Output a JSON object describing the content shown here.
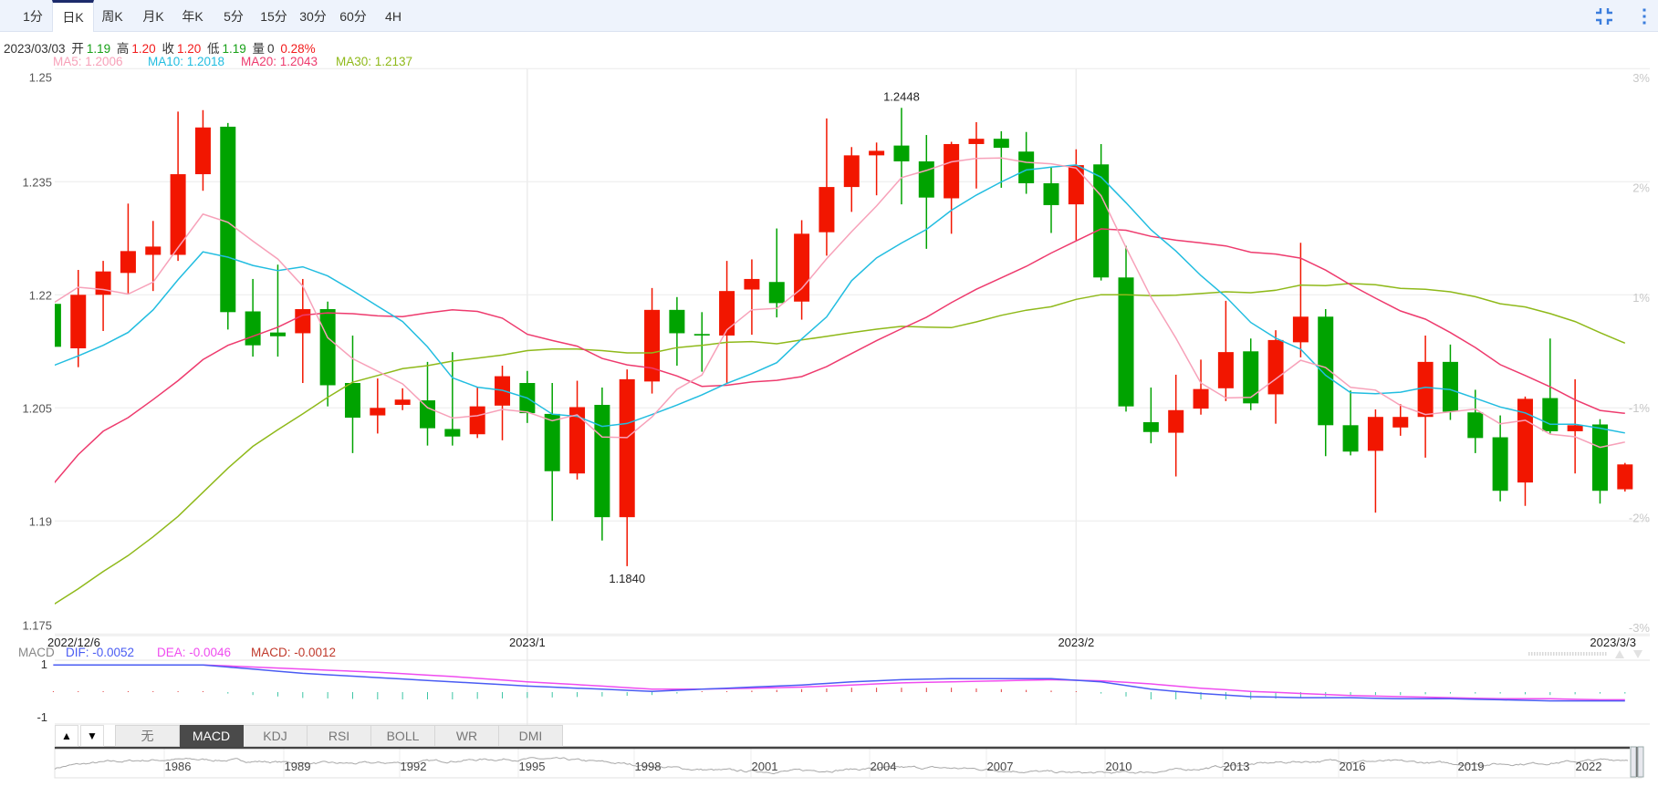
{
  "tabs": [
    {
      "label": "1分",
      "active": false
    },
    {
      "label": "日K",
      "active": true
    },
    {
      "label": "周K",
      "active": false
    },
    {
      "label": "月K",
      "active": false
    },
    {
      "label": "年K",
      "active": false
    },
    {
      "label": "5分",
      "active": false
    },
    {
      "label": "15分",
      "active": false
    },
    {
      "label": "30分",
      "active": false
    },
    {
      "label": "60分",
      "active": false
    },
    {
      "label": "4H",
      "active": false
    }
  ],
  "toolbar_icons": [
    "compress-icon",
    "more-vertical-icon"
  ],
  "info": {
    "date": "2023/03/03",
    "open_label": "开",
    "open": "1.19",
    "high_label": "高",
    "high": "1.20",
    "close_label": "收",
    "close": "1.20",
    "low_label": "低",
    "low": "1.19",
    "volume_label": "量",
    "volume": "0",
    "change": "0.28%"
  },
  "ma_legend": [
    {
      "text": "MA5: 1.2006",
      "color": "#f7a1b9"
    },
    {
      "text": "MA10: 1.2018",
      "color": "#22bde0"
    },
    {
      "text": "MA20: 1.2043",
      "color": "#ee3b6e"
    },
    {
      "text": "MA30: 1.2137",
      "color": "#8fb91a"
    }
  ],
  "macd_legend": {
    "title": "MACD",
    "dif": "DIF: -0.0052",
    "dea": "DEA: -0.0046",
    "macd": "MACD: -0.0012",
    "axis_top": "1",
    "axis_bottom": "-1"
  },
  "indicator_tabs": [
    {
      "label": "无",
      "active": false
    },
    {
      "label": "MACD",
      "active": true
    },
    {
      "label": "KDJ",
      "active": false
    },
    {
      "label": "RSI",
      "active": false
    },
    {
      "label": "BOLL",
      "active": false
    },
    {
      "label": "WR",
      "active": false
    },
    {
      "label": "DMI",
      "active": false
    }
  ],
  "indicator_arrows": [
    "▲",
    "▼"
  ],
  "navigator": {
    "year_labels": [
      "1986",
      "1989",
      "1992",
      "1995",
      "1998",
      "2001",
      "2004",
      "2007",
      "2010",
      "2013",
      "2016",
      "2019",
      "2022"
    ]
  },
  "colors": {
    "up": "#f21600",
    "down": "#00a300",
    "ma5": "#f7a1b9",
    "ma10": "#22bde0",
    "ma20": "#ee3b6e",
    "ma30": "#8fb91a",
    "dif": "#4a5cf3",
    "dea": "#ef4cef",
    "macd_text": "#c0392b",
    "hist_up": "#e03a3a",
    "hist_down": "#3cc4a4"
  },
  "chart_data": {
    "type": "candlestick",
    "ylim": [
      1.175,
      1.25
    ],
    "y_ticks": [
      "1.25",
      "1.235",
      "1.22",
      "1.205",
      "1.19",
      "1.175"
    ],
    "y_tick_values": [
      1.25,
      1.235,
      1.22,
      1.205,
      1.19,
      1.175
    ],
    "right_ticks": [
      "3%",
      "2%",
      "1%",
      "-1%",
      "-2%",
      "-3%"
    ],
    "x_labels": [
      {
        "index": 0,
        "text": "2022/12/6"
      },
      {
        "index": 19,
        "text": "2023/1"
      },
      {
        "index": 41,
        "text": "2023/2"
      },
      {
        "index": 63,
        "text": "2023/3/3"
      }
    ],
    "max_label": {
      "index": 34,
      "text": "1.2448",
      "value": 1.2448
    },
    "min_label": {
      "index": 23,
      "text": "1.1840",
      "value": 1.184
    },
    "ohlc": [
      [
        1.2188,
        1.219,
        1.2131,
        1.2131
      ],
      [
        1.2129,
        1.2233,
        1.2104,
        1.22
      ],
      [
        1.22,
        1.2245,
        1.2152,
        1.2231
      ],
      [
        1.2229,
        1.2321,
        1.2202,
        1.2258
      ],
      [
        1.2253,
        1.2298,
        1.2205,
        1.2264
      ],
      [
        1.2253,
        1.2443,
        1.2245,
        1.236
      ],
      [
        1.236,
        1.2445,
        1.2338,
        1.2422
      ],
      [
        1.2423,
        1.2428,
        1.2154,
        1.2177
      ],
      [
        1.2178,
        1.2221,
        1.2118,
        1.2133
      ],
      [
        1.215,
        1.224,
        1.2118,
        1.2145
      ],
      [
        1.2149,
        1.2221,
        1.2083,
        1.2181
      ],
      [
        1.2181,
        1.2191,
        1.2052,
        1.208
      ],
      [
        1.2083,
        1.2146,
        1.199,
        1.2037
      ],
      [
        1.204,
        1.2089,
        1.2016,
        1.205
      ],
      [
        1.2054,
        1.2076,
        1.2047,
        1.2061
      ],
      [
        1.206,
        1.2111,
        1.2,
        1.2023
      ],
      [
        1.2022,
        1.2124,
        1.2,
        1.2012
      ],
      [
        1.2015,
        1.2077,
        1.201,
        1.2052
      ],
      [
        1.2053,
        1.2106,
        1.2007,
        1.2092
      ],
      [
        1.2083,
        1.2099,
        1.203,
        1.2043
      ],
      [
        1.2042,
        1.2083,
        1.19,
        1.1966
      ],
      [
        1.1963,
        1.2086,
        1.1955,
        1.2051
      ],
      [
        1.2054,
        1.2077,
        1.1874,
        1.1905
      ],
      [
        1.1905,
        1.2101,
        1.184,
        1.2088
      ],
      [
        1.2085,
        1.2209,
        1.2069,
        1.218
      ],
      [
        1.218,
        1.2197,
        1.2106,
        1.2149
      ],
      [
        1.2148,
        1.2177,
        1.2098,
        1.2146
      ],
      [
        1.2146,
        1.2245,
        1.2083,
        1.2205
      ],
      [
        1.2207,
        1.2247,
        1.2147,
        1.2221
      ],
      [
        1.2217,
        1.2288,
        1.217,
        1.2189
      ],
      [
        1.2191,
        1.2299,
        1.2167,
        1.2281
      ],
      [
        1.2283,
        1.2434,
        1.2252,
        1.2343
      ],
      [
        1.2343,
        1.2396,
        1.231,
        1.2385
      ],
      [
        1.2385,
        1.2402,
        1.2332,
        1.2391
      ],
      [
        1.2398,
        1.2448,
        1.232,
        1.2377
      ],
      [
        1.2377,
        1.2412,
        1.2261,
        1.2329
      ],
      [
        1.2328,
        1.2403,
        1.2281,
        1.24
      ],
      [
        1.24,
        1.2429,
        1.2341,
        1.2407
      ],
      [
        1.2407,
        1.2417,
        1.2342,
        1.2395
      ],
      [
        1.239,
        1.2416,
        1.2334,
        1.2348
      ],
      [
        1.2348,
        1.2369,
        1.2282,
        1.2319
      ],
      [
        1.232,
        1.2393,
        1.2272,
        1.2372
      ],
      [
        1.2373,
        1.24,
        1.2219,
        1.2223
      ],
      [
        1.2223,
        1.2265,
        1.2045,
        1.2052
      ],
      [
        1.2031,
        1.2077,
        1.2003,
        1.2018
      ],
      [
        1.2017,
        1.2094,
        1.1959,
        1.2047
      ],
      [
        1.2049,
        1.2114,
        1.2041,
        1.2075
      ],
      [
        1.2076,
        1.2192,
        1.2059,
        1.2124
      ],
      [
        1.2125,
        1.2142,
        1.2047,
        1.2056
      ],
      [
        1.2068,
        1.2153,
        1.2029,
        1.214
      ],
      [
        1.2137,
        1.2269,
        1.2117,
        1.2171
      ],
      [
        1.2171,
        1.2181,
        1.1986,
        1.2027
      ],
      [
        1.2027,
        1.2073,
        1.1987,
        1.1992
      ],
      [
        1.1993,
        1.2048,
        1.1911,
        1.2038
      ],
      [
        1.2024,
        1.2055,
        1.2013,
        1.2038
      ],
      [
        1.2038,
        1.2146,
        1.1984,
        1.2111
      ],
      [
        1.2111,
        1.2134,
        1.2034,
        1.2045
      ],
      [
        1.2044,
        1.2074,
        1.199,
        1.201
      ],
      [
        1.2011,
        1.204,
        1.1926,
        1.194
      ],
      [
        1.1951,
        1.2065,
        1.192,
        1.2062
      ],
      [
        1.2063,
        1.2142,
        1.2016,
        1.2019
      ],
      [
        1.2019,
        1.2088,
        1.1963,
        1.2027
      ],
      [
        1.2028,
        1.2035,
        1.1923,
        1.194
      ],
      [
        1.1942,
        1.1977,
        1.1939,
        1.1975
      ]
    ],
    "ma": {
      "ma5": {
        "period": 5,
        "leading_values": [
          1.2189,
          1.221,
          1.2207,
          1.2201
        ]
      },
      "ma10": {
        "period": 10,
        "leading_values": [
          1.2106,
          1.2119,
          1.2133,
          1.215,
          1.218,
          1.222,
          1.2257,
          1.225,
          1.2239
        ]
      },
      "ma20": {
        "period": 20,
        "leading_values": [
          1.1949,
          1.1988,
          1.2019,
          1.2037,
          1.2061,
          1.2086,
          1.2114,
          1.2133,
          1.2145,
          1.2157,
          1.2173,
          1.2176,
          1.2175,
          1.2172,
          1.2171,
          1.2176,
          1.218,
          1.2178,
          1.2169
        ]
      },
      "ma30": {
        "period": 30,
        "leading_values": [
          1.1789,
          1.181,
          1.1833,
          1.1854,
          1.1879,
          1.1906,
          1.1938,
          1.197,
          1.1999,
          1.2021,
          1.2042,
          1.2064,
          1.2084,
          1.2093,
          1.2102,
          1.2106,
          1.2112,
          1.2116,
          1.212,
          1.2126,
          1.2128,
          1.2128,
          1.2126,
          1.2123,
          1.2123,
          1.213,
          1.2133,
          1.2137,
          1.2138
        ]
      }
    },
    "macd_panel": {
      "ylim": [
        -1,
        1
      ],
      "dif": [
        [
          0,
          0.96
        ],
        [
          6,
          0.96
        ],
        [
          8,
          0.8
        ],
        [
          10,
          0.64
        ],
        [
          13,
          0.48
        ],
        [
          16,
          0.32
        ],
        [
          19,
          0.16
        ],
        [
          22,
          0.04
        ],
        [
          24,
          -0.04
        ],
        [
          26,
          0.04
        ],
        [
          28,
          0.12
        ],
        [
          30,
          0.2
        ],
        [
          32,
          0.32
        ],
        [
          34,
          0.4
        ],
        [
          36,
          0.44
        ],
        [
          38,
          0.44
        ],
        [
          40,
          0.44
        ],
        [
          42,
          0.32
        ],
        [
          44,
          0.04
        ],
        [
          46,
          -0.12
        ],
        [
          48,
          -0.24
        ],
        [
          50,
          -0.28
        ],
        [
          52,
          -0.28
        ],
        [
          54,
          -0.32
        ],
        [
          56,
          -0.32
        ],
        [
          58,
          -0.36
        ],
        [
          60,
          -0.4
        ],
        [
          62,
          -0.4
        ],
        [
          63,
          -0.4
        ]
      ],
      "dea": [
        [
          0,
          0.96
        ],
        [
          6,
          0.96
        ],
        [
          8,
          0.88
        ],
        [
          10,
          0.8
        ],
        [
          13,
          0.68
        ],
        [
          16,
          0.52
        ],
        [
          19,
          0.32
        ],
        [
          22,
          0.16
        ],
        [
          24,
          0.04
        ],
        [
          26,
          0.04
        ],
        [
          28,
          0.08
        ],
        [
          30,
          0.12
        ],
        [
          32,
          0.2
        ],
        [
          34,
          0.28
        ],
        [
          36,
          0.32
        ],
        [
          38,
          0.36
        ],
        [
          40,
          0.4
        ],
        [
          42,
          0.36
        ],
        [
          44,
          0.24
        ],
        [
          46,
          0.08
        ],
        [
          48,
          -0.04
        ],
        [
          50,
          -0.12
        ],
        [
          52,
          -0.2
        ],
        [
          54,
          -0.24
        ],
        [
          56,
          -0.28
        ],
        [
          58,
          -0.32
        ],
        [
          60,
          -0.32
        ],
        [
          62,
          -0.36
        ],
        [
          63,
          -0.36
        ]
      ]
    }
  }
}
